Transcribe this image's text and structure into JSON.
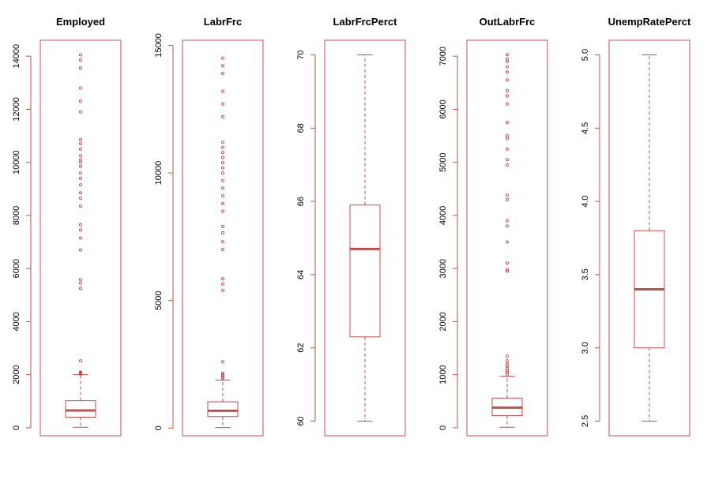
{
  "style": {
    "color": "#c0504d",
    "background": "#ffffff"
  },
  "chart_data": [
    {
      "type": "boxplot",
      "title": "Employed",
      "ylim": [
        -300,
        14600
      ],
      "yticks": [
        0,
        2000,
        4000,
        6000,
        8000,
        10000,
        12000,
        14000
      ],
      "ytick_labels": [
        "0",
        "2000",
        "4000",
        "6000",
        "8000",
        "10000",
        "12000",
        "14000"
      ],
      "box": {
        "whisker_low": 20,
        "q1": 400,
        "median": 650,
        "q3": 1020,
        "whisker_high": 2000
      },
      "outliers": [
        2020,
        2040,
        2060,
        2080,
        2100,
        2520,
        5250,
        5450,
        5580,
        6700,
        7150,
        7450,
        7650,
        8350,
        8650,
        8850,
        9150,
        9400,
        9600,
        9850,
        10000,
        10100,
        10250,
        10500,
        10700,
        10850,
        11900,
        12300,
        12800,
        13550,
        13850,
        14050
      ]
    },
    {
      "type": "boxplot",
      "title": "LabrFrc",
      "ylim": [
        -300,
        15200
      ],
      "yticks": [
        0,
        5000,
        10000,
        15000
      ],
      "ytick_labels": [
        "0",
        "5000",
        "10000",
        "15000"
      ],
      "box": {
        "whisker_low": 20,
        "q1": 450,
        "median": 680,
        "q3": 1030,
        "whisker_high": 1880
      },
      "outliers": [
        1960,
        2000,
        2050,
        2100,
        2150,
        2600,
        5400,
        5650,
        5850,
        7000,
        7300,
        7650,
        7900,
        8500,
        8800,
        9100,
        9400,
        9700,
        10000,
        10200,
        10400,
        10600,
        10800,
        11000,
        11200,
        12200,
        12700,
        13200,
        13900,
        14200,
        14500
      ]
    },
    {
      "type": "boxplot",
      "title": "LabrFrcPerct",
      "ylim": [
        59.6,
        70.4
      ],
      "yticks": [
        60,
        62,
        64,
        66,
        68,
        70
      ],
      "ytick_labels": [
        "60",
        "62",
        "64",
        "66",
        "68",
        "70"
      ],
      "box": {
        "whisker_low": 60,
        "q1": 62.3,
        "median": 64.7,
        "q3": 65.9,
        "whisker_high": 70
      },
      "outliers": []
    },
    {
      "type": "boxplot",
      "title": "OutLabrFrc",
      "ylim": [
        -150,
        7300
      ],
      "yticks": [
        0,
        1000,
        2000,
        3000,
        4000,
        5000,
        6000,
        7000
      ],
      "ytick_labels": [
        "0",
        "1000",
        "2000",
        "3000",
        "4000",
        "5000",
        "6000",
        "7000"
      ],
      "box": {
        "whisker_low": 10,
        "q1": 230,
        "median": 380,
        "q3": 560,
        "whisker_high": 970
      },
      "outliers": [
        1000,
        1040,
        1080,
        1120,
        1160,
        1200,
        1260,
        1350,
        2950,
        2980,
        3100,
        3500,
        3800,
        3900,
        4300,
        4380,
        4950,
        5050,
        5250,
        5450,
        5500,
        5750,
        6100,
        6250,
        6350,
        6550,
        6700,
        6800,
        6900,
        6950,
        7030
      ]
    },
    {
      "type": "boxplot",
      "title": "UnempRatePerct",
      "ylim": [
        2.4,
        5.1
      ],
      "yticks": [
        2.5,
        3.0,
        3.5,
        4.0,
        4.5,
        5.0
      ],
      "ytick_labels": [
        "2.5",
        "3.0",
        "3.5",
        "4.0",
        "4.5",
        "5.0"
      ],
      "box": {
        "whisker_low": 2.5,
        "q1": 3.0,
        "median": 3.4,
        "q3": 3.8,
        "whisker_high": 5.0
      },
      "outliers": []
    }
  ]
}
